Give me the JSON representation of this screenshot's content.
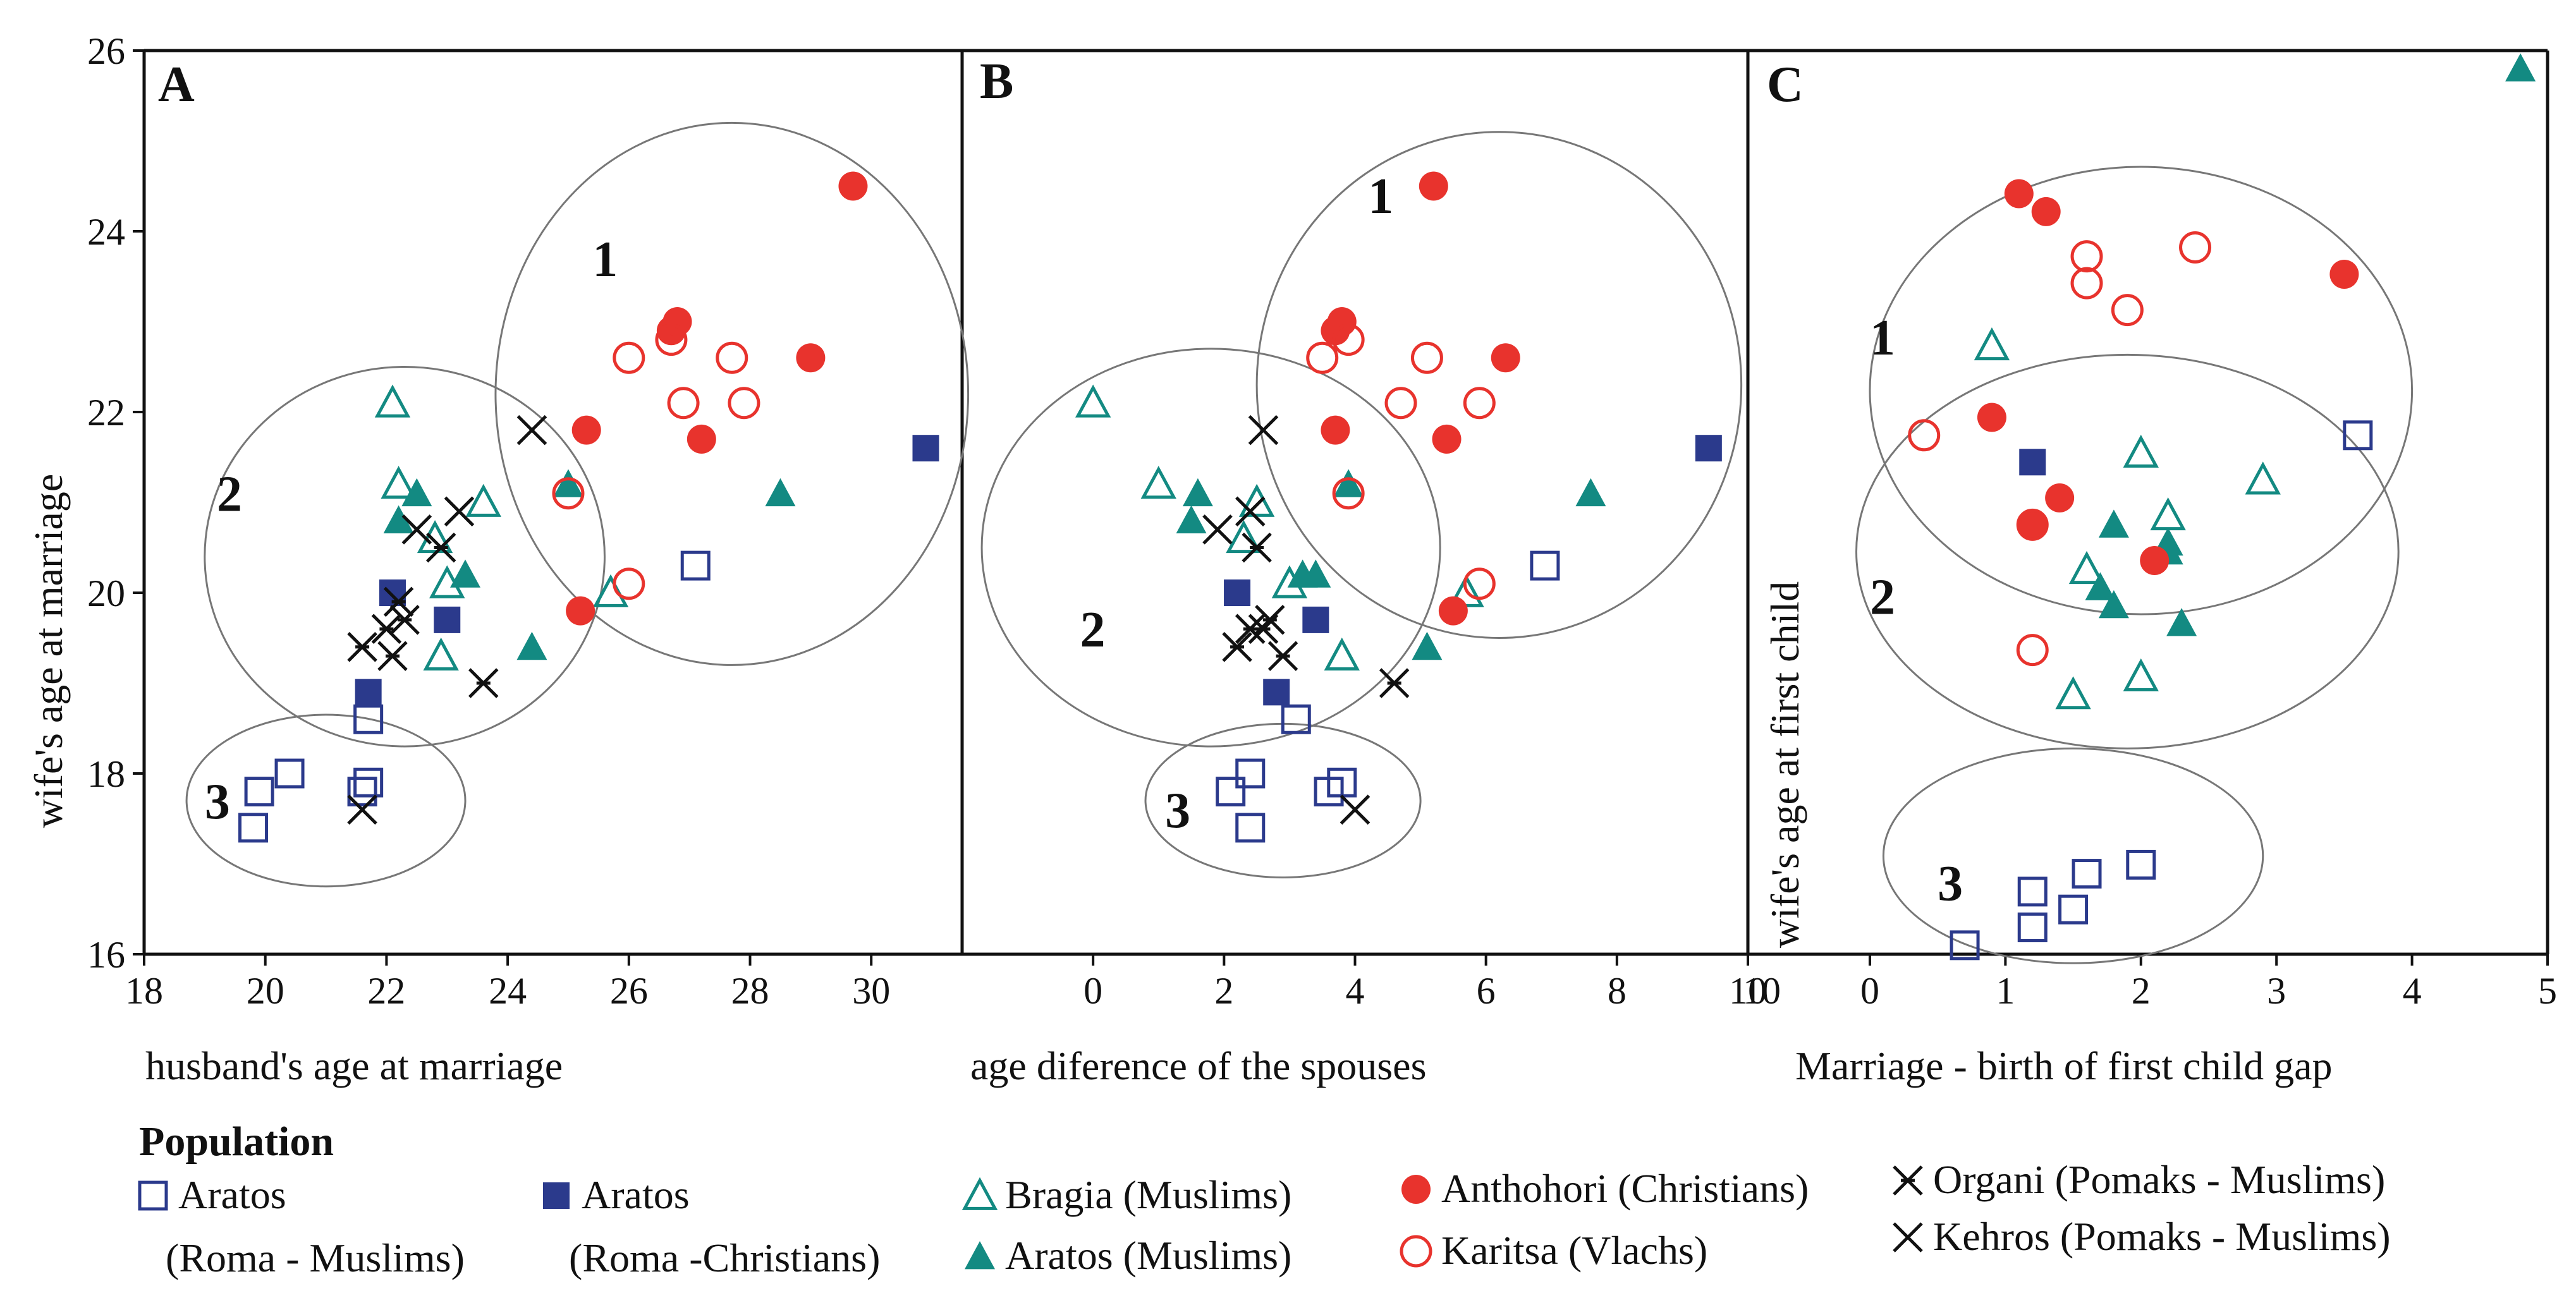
{
  "colors": {
    "navy": "#2b3a8c",
    "teal": "#138a82",
    "red": "#e8332d",
    "black": "#111111",
    "ellipse": "#777777"
  },
  "legend": {
    "title": "Population",
    "items": [
      {
        "line1": "Aratos",
        "line2": "(Roma - Muslims)",
        "marker": "square-open",
        "color": "#2b3a8c"
      },
      {
        "line1": "Aratos",
        "line2": "(Roma -Christians)",
        "marker": "square-filled",
        "color": "#2b3a8c"
      },
      {
        "line1": "Bragia (Muslims)",
        "line2": "",
        "marker": "triangle-open",
        "color": "#138a82"
      },
      {
        "line1": "Aratos (Muslims)",
        "line2": "",
        "marker": "triangle-filled",
        "color": "#138a82"
      },
      {
        "line1": "Anthohori (Christians)",
        "line2": "",
        "marker": "circle-filled",
        "color": "#e8332d"
      },
      {
        "line1": "Karitsa (Vlachs)",
        "line2": "",
        "marker": "circle-open",
        "color": "#e8332d"
      },
      {
        "line1": "Organi (Pomaks - Muslims)",
        "line2": "",
        "marker": "star-cross",
        "color": "#111111"
      },
      {
        "line1": "Kehros (Pomaks - Muslims)",
        "line2": "",
        "marker": "x",
        "color": "#111111"
      }
    ]
  },
  "chart_data": [
    {
      "type": "scatter",
      "panel": "A",
      "xlabel": "husband's age at marriage",
      "ylabel": "wife's age at marriage",
      "xlim": [
        18,
        31.5
      ],
      "ylim": [
        16,
        26
      ],
      "xticks": [
        18,
        20,
        22,
        24,
        26,
        28,
        30
      ],
      "yticks": [
        16,
        18,
        20,
        22,
        24,
        26
      ],
      "clusters": [
        {
          "label": "1",
          "center": [
            27.7,
            22.2
          ],
          "radius": [
            3.9,
            3.0
          ],
          "label_at": [
            25.4,
            23.7
          ]
        },
        {
          "label": "2",
          "center": [
            22.3,
            20.4
          ],
          "radius": [
            3.3,
            2.1
          ],
          "label_at": [
            19.2,
            21.1
          ]
        },
        {
          "label": "3",
          "center": [
            21.0,
            17.7
          ],
          "radius": [
            2.3,
            0.95
          ],
          "label_at": [
            19.0,
            17.7
          ]
        }
      ],
      "series": [
        {
          "name": "Aratos (Roma - Muslims)",
          "marker": "square-open",
          "points": [
            [
              19.8,
              17.4
            ],
            [
              19.9,
              17.8
            ],
            [
              20.4,
              18.0
            ],
            [
              21.6,
              17.8
            ],
            [
              21.7,
              17.9
            ],
            [
              21.7,
              18.6
            ],
            [
              27.1,
              20.3
            ]
          ]
        },
        {
          "name": "Aratos (Roma -Christians)",
          "marker": "square-filled",
          "points": [
            [
              21.7,
              18.9
            ],
            [
              22.1,
              20.0
            ],
            [
              23.0,
              19.7
            ],
            [
              30.9,
              21.6
            ]
          ]
        },
        {
          "name": "Bragia (Muslims)",
          "marker": "triangle-open",
          "points": [
            [
              22.1,
              22.1
            ],
            [
              22.2,
              21.2
            ],
            [
              22.8,
              20.6
            ],
            [
              23.0,
              20.1
            ],
            [
              22.9,
              19.3
            ],
            [
              23.6,
              21.0
            ],
            [
              25.7,
              20.0
            ]
          ]
        },
        {
          "name": "Aratos (Muslims)",
          "marker": "triangle-filled",
          "points": [
            [
              22.2,
              20.8
            ],
            [
              22.5,
              21.1
            ],
            [
              23.3,
              20.2
            ],
            [
              24.4,
              19.4
            ],
            [
              25.0,
              21.2
            ],
            [
              28.5,
              21.1
            ]
          ]
        },
        {
          "name": "Anthohori (Christians)",
          "marker": "circle-filled",
          "points": [
            [
              25.3,
              21.8
            ],
            [
              25.2,
              19.8
            ],
            [
              26.7,
              22.9
            ],
            [
              26.8,
              23.0
            ],
            [
              27.2,
              21.7
            ],
            [
              29.0,
              22.6
            ],
            [
              29.7,
              24.5
            ]
          ]
        },
        {
          "name": "Karitsa (Vlachs)",
          "marker": "circle-open",
          "points": [
            [
              26.0,
              22.6
            ],
            [
              26.7,
              22.8
            ],
            [
              26.9,
              22.1
            ],
            [
              27.7,
              22.6
            ],
            [
              27.9,
              22.1
            ],
            [
              25.0,
              21.1
            ],
            [
              26.0,
              20.1
            ]
          ]
        },
        {
          "name": "Organi (Pomaks - Muslims)",
          "marker": "star-cross",
          "points": [
            [
              21.6,
              19.4
            ],
            [
              22.0,
              19.6
            ],
            [
              22.1,
              19.3
            ],
            [
              22.3,
              19.7
            ],
            [
              22.2,
              19.9
            ],
            [
              22.9,
              20.5
            ],
            [
              23.6,
              19.0
            ]
          ]
        },
        {
          "name": "Kehros (Pomaks - Muslims)",
          "marker": "x",
          "points": [
            [
              21.6,
              17.6
            ],
            [
              22.5,
              20.7
            ],
            [
              23.2,
              20.9
            ],
            [
              24.4,
              21.8
            ]
          ]
        }
      ]
    },
    {
      "type": "scatter",
      "panel": "B",
      "xlabel": "age diference of the spouses",
      "ylabel": "",
      "xlim": [
        -2,
        10
      ],
      "ylim": [
        16,
        26
      ],
      "xticks": [
        0,
        2,
        4,
        6,
        8,
        10
      ],
      "yticks": [],
      "clusters": [
        {
          "label": "1",
          "center": [
            6.2,
            22.3
          ],
          "radius": [
            3.7,
            2.8
          ],
          "label_at": [
            4.2,
            24.4
          ]
        },
        {
          "label": "2",
          "center": [
            1.8,
            20.5
          ],
          "radius": [
            3.5,
            2.2
          ],
          "label_at": [
            -0.2,
            19.6
          ]
        },
        {
          "label": "3",
          "center": [
            2.9,
            17.7
          ],
          "radius": [
            2.1,
            0.85
          ],
          "label_at": [
            1.1,
            17.6
          ]
        }
      ],
      "series": [
        {
          "name": "Aratos (Roma - Muslims)",
          "marker": "square-open",
          "points": [
            [
              2.1,
              17.8
            ],
            [
              2.4,
              17.4
            ],
            [
              2.4,
              18.0
            ],
            [
              3.6,
              17.8
            ],
            [
              3.8,
              17.9
            ],
            [
              3.1,
              18.6
            ],
            [
              6.9,
              20.3
            ]
          ]
        },
        {
          "name": "Aratos (Roma -Christians)",
          "marker": "square-filled",
          "points": [
            [
              2.2,
              20.0
            ],
            [
              2.8,
              18.9
            ],
            [
              3.4,
              19.7
            ],
            [
              9.4,
              21.6
            ]
          ]
        },
        {
          "name": "Bragia (Muslims)",
          "marker": "triangle-open",
          "points": [
            [
              0.0,
              22.1
            ],
            [
              1.0,
              21.2
            ],
            [
              2.5,
              21.0
            ],
            [
              2.3,
              20.6
            ],
            [
              3.0,
              20.1
            ],
            [
              3.8,
              19.3
            ],
            [
              5.7,
              20.0
            ]
          ]
        },
        {
          "name": "Aratos (Muslims)",
          "marker": "triangle-filled",
          "points": [
            [
              1.6,
              21.1
            ],
            [
              1.5,
              20.8
            ],
            [
              3.2,
              20.2
            ],
            [
              3.4,
              20.2
            ],
            [
              3.9,
              21.2
            ],
            [
              5.1,
              19.4
            ],
            [
              7.6,
              21.1
            ]
          ]
        },
        {
          "name": "Anthohori (Christians)",
          "marker": "circle-filled",
          "points": [
            [
              3.7,
              22.9
            ],
            [
              3.8,
              23.0
            ],
            [
              3.7,
              21.8
            ],
            [
              5.2,
              24.5
            ],
            [
              5.4,
              21.7
            ],
            [
              5.5,
              19.8
            ],
            [
              6.3,
              22.6
            ]
          ]
        },
        {
          "name": "Karitsa (Vlachs)",
          "marker": "circle-open",
          "points": [
            [
              3.5,
              22.6
            ],
            [
              3.9,
              22.8
            ],
            [
              4.7,
              22.1
            ],
            [
              5.1,
              22.6
            ],
            [
              5.9,
              22.1
            ],
            [
              3.9,
              21.1
            ],
            [
              5.9,
              20.1
            ]
          ]
        },
        {
          "name": "Organi (Pomaks - Muslims)",
          "marker": "star-cross",
          "points": [
            [
              2.2,
              19.4
            ],
            [
              2.4,
              19.6
            ],
            [
              2.6,
              19.6
            ],
            [
              2.7,
              19.7
            ],
            [
              2.9,
              19.3
            ],
            [
              2.5,
              20.5
            ],
            [
              4.6,
              19.0
            ]
          ]
        },
        {
          "name": "Kehros (Pomaks - Muslims)",
          "marker": "x",
          "points": [
            [
              1.9,
              20.7
            ],
            [
              2.4,
              20.9
            ],
            [
              2.6,
              21.8
            ],
            [
              4.0,
              17.6
            ]
          ]
        }
      ]
    },
    {
      "type": "scatter",
      "panel": "C",
      "xlabel": "Marriage - birth of first child gap",
      "ylabel": "wife's age at first child",
      "xlim": [
        -0.9,
        5.0
      ],
      "ylim": [
        15.9,
        26
      ],
      "xticks": [
        0,
        1,
        2,
        3,
        4,
        5
      ],
      "xtick_label_left": "10",
      "yticks": [],
      "clusters": [
        {
          "label": "1",
          "center": [
            2.0,
            22.2
          ],
          "radius": [
            2.0,
            2.5
          ],
          "label_at": [
            0.0,
            22.8
          ]
        },
        {
          "label": "2",
          "center": [
            1.9,
            20.4
          ],
          "radius": [
            2.0,
            2.2
          ],
          "label_at": [
            0.0,
            19.9
          ]
        },
        {
          "label": "3",
          "center": [
            1.5,
            17.0
          ],
          "radius": [
            1.4,
            1.2
          ],
          "label_at": [
            0.5,
            16.7
          ]
        }
      ],
      "series": [
        {
          "name": "Aratos (Roma - Muslims)",
          "marker": "square-open",
          "points": [
            [
              0.7,
              16.0
            ],
            [
              1.2,
              16.2
            ],
            [
              1.2,
              16.6
            ],
            [
              1.5,
              16.4
            ],
            [
              1.6,
              16.8
            ],
            [
              2.0,
              16.9
            ],
            [
              3.6,
              21.7
            ]
          ]
        },
        {
          "name": "Aratos (Roma -Christians)",
          "marker": "square-filled",
          "points": [
            [
              1.2,
              21.4
            ]
          ]
        },
        {
          "name": "Bragia (Muslims)",
          "marker": "triangle-open",
          "points": [
            [
              0.9,
              22.7
            ],
            [
              1.5,
              18.8
            ],
            [
              1.6,
              20.2
            ],
            [
              2.0,
              21.5
            ],
            [
              2.0,
              19.0
            ],
            [
              2.2,
              20.8
            ],
            [
              2.9,
              21.2
            ]
          ]
        },
        {
          "name": "Aratos (Muslims)",
          "marker": "triangle-filled",
          "points": [
            [
              1.7,
              20.0
            ],
            [
              1.8,
              19.8
            ],
            [
              1.8,
              20.7
            ],
            [
              2.2,
              20.4
            ],
            [
              2.2,
              20.5
            ],
            [
              2.3,
              19.6
            ],
            [
              4.8,
              25.8
            ]
          ]
        },
        {
          "name": "Anthohori (Christians)",
          "marker": "circle-filled",
          "points": [
            [
              1.1,
              24.4
            ],
            [
              1.3,
              24.2
            ],
            [
              0.9,
              21.9
            ],
            [
              1.4,
              21.0
            ],
            [
              1.2,
              20.7
            ],
            [
              2.1,
              20.3
            ],
            [
              3.5,
              23.5
            ]
          ]
        },
        {
          "name": "Karitsa (Vlachs)",
          "marker": "circle-open",
          "points": [
            [
              0.4,
              21.7
            ],
            [
              1.2,
              20.7
            ],
            [
              1.6,
              23.7
            ],
            [
              1.6,
              23.4
            ],
            [
              1.9,
              23.1
            ],
            [
              2.4,
              23.8
            ],
            [
              1.2,
              19.3
            ]
          ]
        }
      ]
    }
  ]
}
